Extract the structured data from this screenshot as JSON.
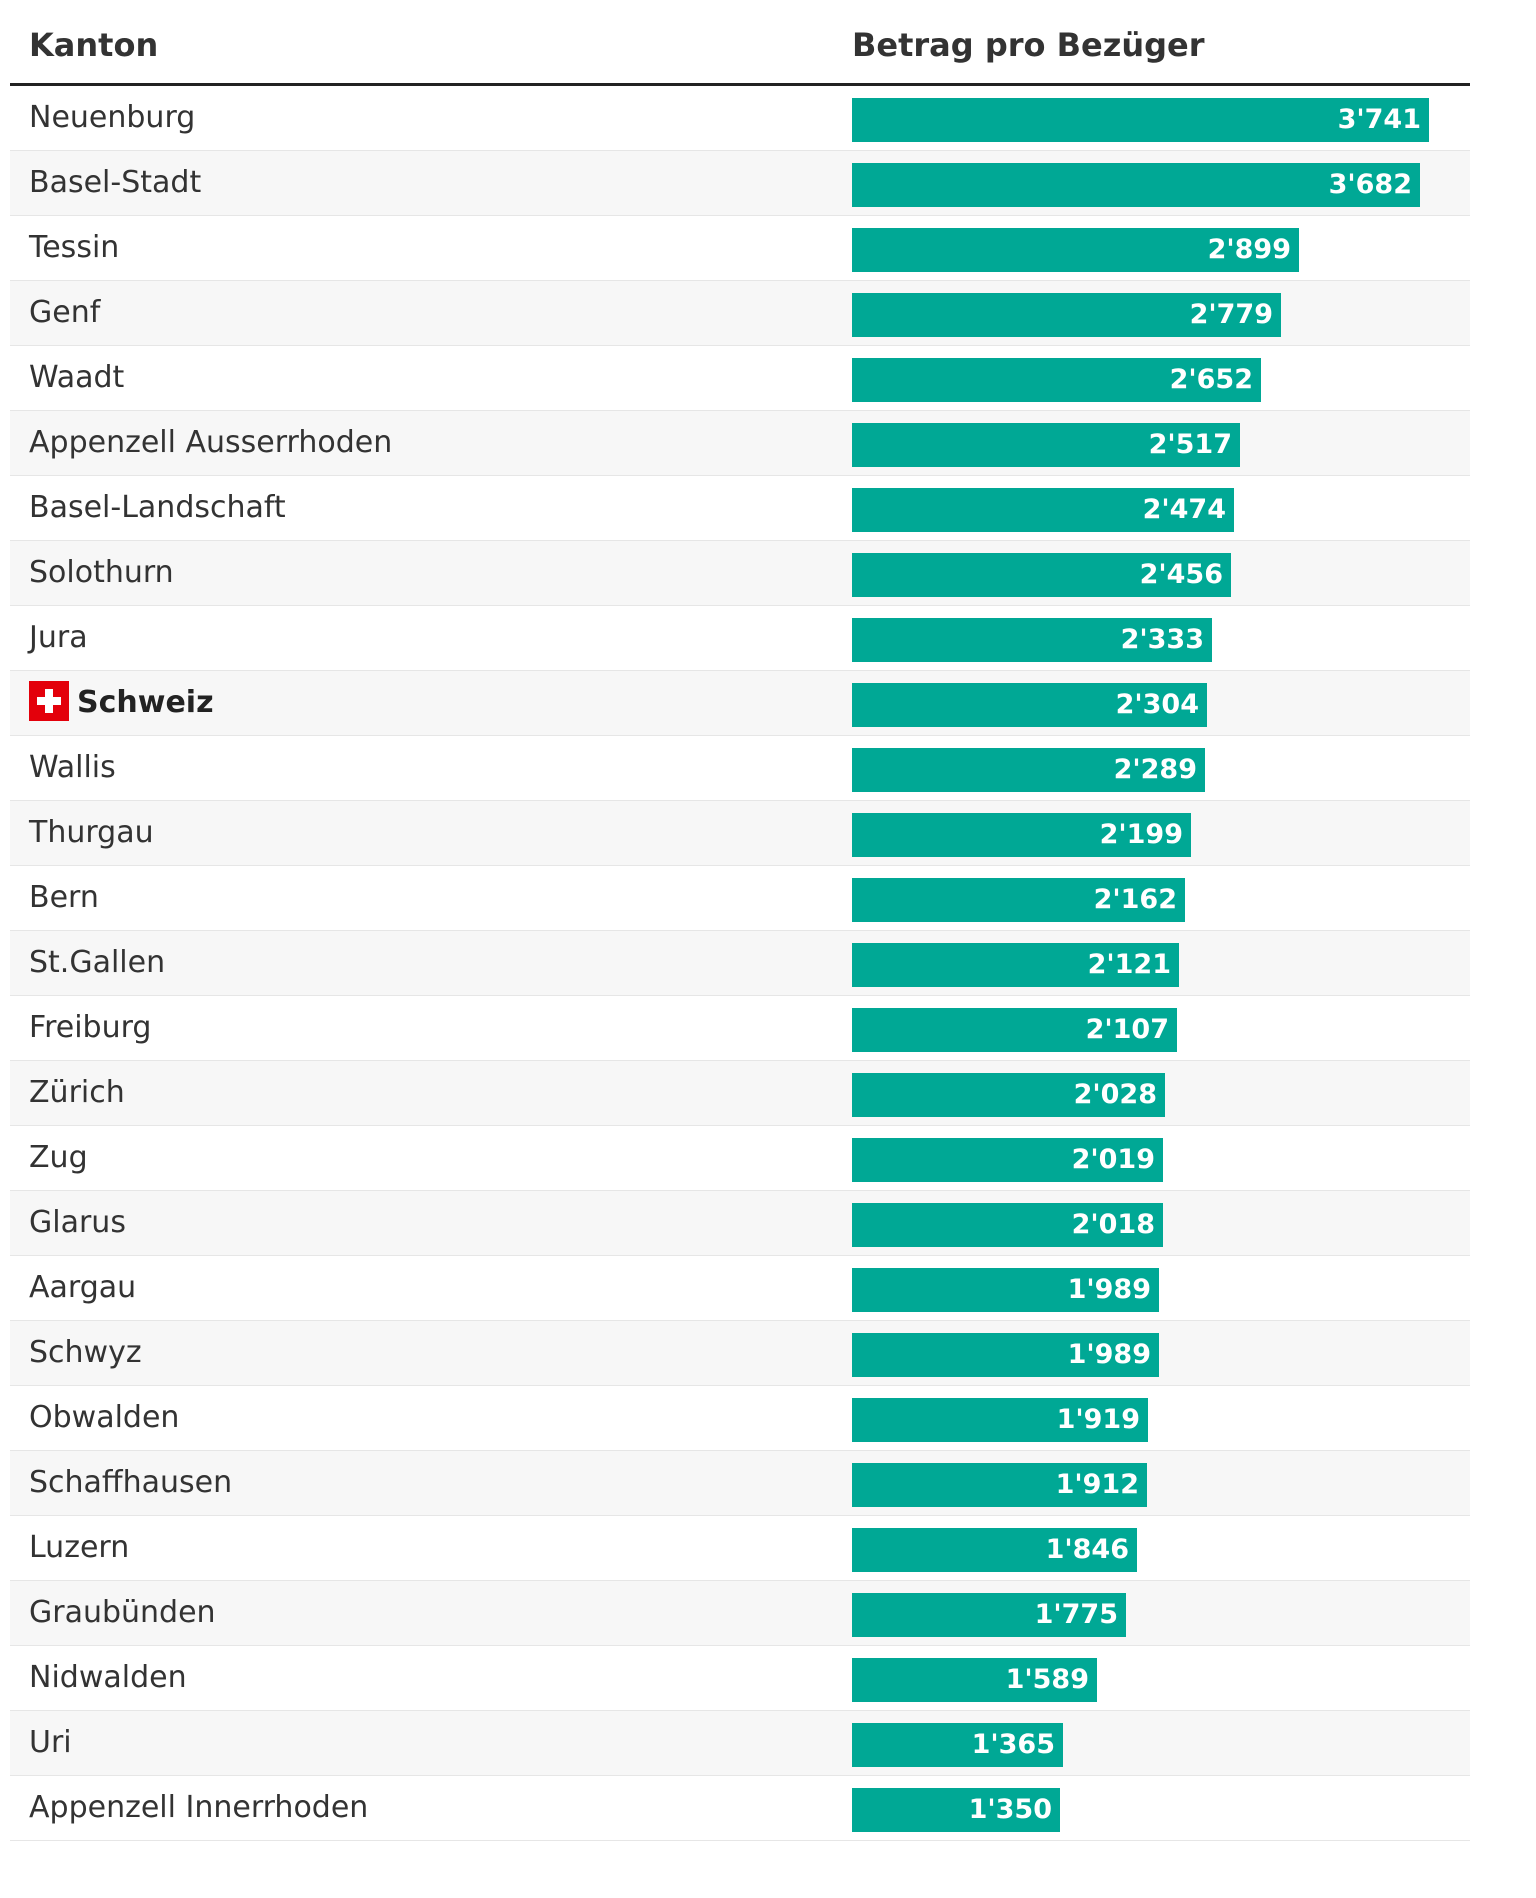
{
  "chart_data": {
    "type": "bar",
    "orientation": "horizontal",
    "column_headers": {
      "label": "Kanton",
      "value": "Betrag pro Bezüger"
    },
    "bar_color": "#00a895",
    "highlight_flag_color": "#e3000b",
    "rows": [
      {
        "label": "Neuenburg",
        "value": 3741,
        "display": "3'741"
      },
      {
        "label": "Basel-Stadt",
        "value": 3682,
        "display": "3'682"
      },
      {
        "label": "Tessin",
        "value": 2899,
        "display": "2'899"
      },
      {
        "label": "Genf",
        "value": 2779,
        "display": "2'779"
      },
      {
        "label": "Waadt",
        "value": 2652,
        "display": "2'652"
      },
      {
        "label": "Appenzell Ausserrhoden",
        "value": 2517,
        "display": "2'517"
      },
      {
        "label": "Basel-Landschaft",
        "value": 2474,
        "display": "2'474"
      },
      {
        "label": "Solothurn",
        "value": 2456,
        "display": "2'456"
      },
      {
        "label": "Jura",
        "value": 2333,
        "display": "2'333"
      },
      {
        "label": "Schweiz",
        "value": 2304,
        "display": "2'304",
        "highlight": true
      },
      {
        "label": "Wallis",
        "value": 2289,
        "display": "2'289"
      },
      {
        "label": "Thurgau",
        "value": 2199,
        "display": "2'199"
      },
      {
        "label": "Bern",
        "value": 2162,
        "display": "2'162"
      },
      {
        "label": "St.Gallen",
        "value": 2121,
        "display": "2'121"
      },
      {
        "label": "Freiburg",
        "value": 2107,
        "display": "2'107"
      },
      {
        "label": "Zürich",
        "value": 2028,
        "display": "2'028"
      },
      {
        "label": "Zug",
        "value": 2019,
        "display": "2'019"
      },
      {
        "label": "Glarus",
        "value": 2018,
        "display": "2'018"
      },
      {
        "label": "Aargau",
        "value": 1989,
        "display": "1'989"
      },
      {
        "label": "Schwyz",
        "value": 1989,
        "display": "1'989"
      },
      {
        "label": "Obwalden",
        "value": 1919,
        "display": "1'919"
      },
      {
        "label": "Schaffhausen",
        "value": 1912,
        "display": "1'912"
      },
      {
        "label": "Luzern",
        "value": 1846,
        "display": "1'846"
      },
      {
        "label": "Graubünden",
        "value": 1775,
        "display": "1'775"
      },
      {
        "label": "Nidwalden",
        "value": 1589,
        "display": "1'589"
      },
      {
        "label": "Uri",
        "value": 1365,
        "display": "1'365"
      },
      {
        "label": "Appenzell Innerrhoden",
        "value": 1350,
        "display": "1'350"
      }
    ],
    "xlim": [
      0,
      3741
    ]
  }
}
